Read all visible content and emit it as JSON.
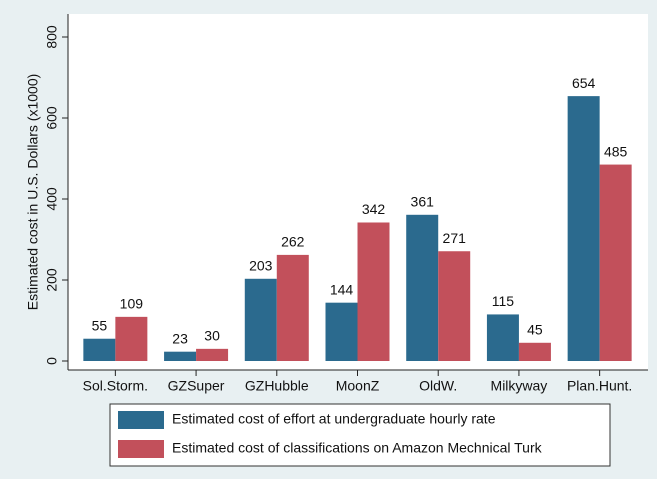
{
  "chart_data": {
    "type": "bar",
    "y_label": "Estimated cost in U.S. Dollars (x1000)",
    "categories": [
      "Sol.Storm.",
      "GZSuper",
      "GZHubble",
      "MoonZ",
      "OldW.",
      "Milkyway",
      "Plan.Hunt."
    ],
    "series": [
      {
        "name": "Estimated cost of effort at undergraduate hourly rate",
        "color": "#2b6a8e",
        "values": [
          55,
          23,
          203,
          144,
          361,
          115,
          654
        ]
      },
      {
        "name": "Estimated cost of classifications on Amazon Mechnical Turk",
        "color": "#c2505b",
        "values": [
          109,
          30,
          262,
          342,
          271,
          45,
          485
        ]
      }
    ],
    "ylim": [
      0,
      800
    ],
    "yticks": [
      0,
      200,
      400,
      600,
      800
    ]
  }
}
